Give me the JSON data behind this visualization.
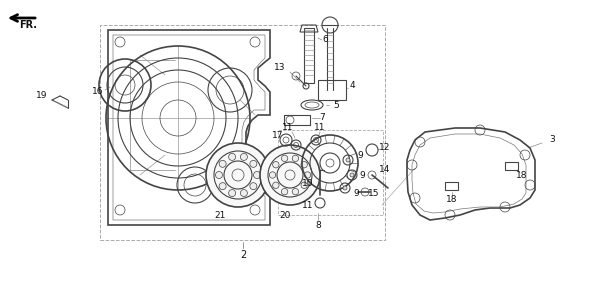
{
  "bg_color": "#ffffff",
  "lc": "#444444",
  "lc_light": "#888888",
  "fig_width": 5.9,
  "fig_height": 3.01,
  "dpi": 100
}
